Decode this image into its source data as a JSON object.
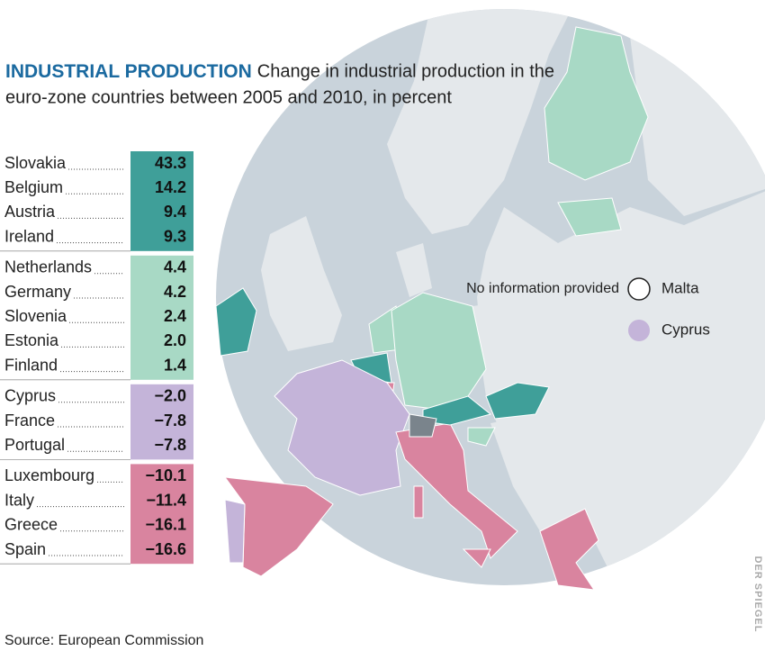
{
  "header": {
    "title": "INDUSTRIAL PRODUCTION",
    "subtitle": "Change in industrial production in the euro-zone countries between 2005 and 2010, in percent"
  },
  "groups": [
    {
      "color": "#3f9f99",
      "rows": [
        {
          "country": "Slovakia",
          "value": "43.3"
        },
        {
          "country": "Belgium",
          "value": "14.2"
        },
        {
          "country": "Austria",
          "value": "9.4"
        },
        {
          "country": "Ireland",
          "value": "9.3"
        }
      ]
    },
    {
      "color": "#a8d9c5",
      "rows": [
        {
          "country": "Netherlands",
          "value": "4.4"
        },
        {
          "country": "Germany",
          "value": "4.2"
        },
        {
          "country": "Slovenia",
          "value": "2.4"
        },
        {
          "country": "Estonia",
          "value": "2.0"
        },
        {
          "country": "Finland",
          "value": "1.4"
        }
      ]
    },
    {
      "color": "#c4b4d9",
      "rows": [
        {
          "country": "Cyprus",
          "value": "−2.0"
        },
        {
          "country": "France",
          "value": "−7.8"
        },
        {
          "country": "Portugal",
          "value": "−7.8"
        }
      ]
    },
    {
      "color": "#d9849f",
      "rows": [
        {
          "country": "Luxembourg",
          "value": "−10.1"
        },
        {
          "country": "Italy",
          "value": "−11.4"
        },
        {
          "country": "Greece",
          "value": "−16.1"
        },
        {
          "country": "Spain",
          "value": "−16.6"
        }
      ]
    }
  ],
  "legend": {
    "note": "No information provided",
    "items": [
      {
        "label": "Malta",
        "color": "#ffffff"
      },
      {
        "label": "Cyprus",
        "color": "#c4b4d9"
      }
    ]
  },
  "source": "Source: European Commission",
  "credit": "DER SPIEGEL"
}
